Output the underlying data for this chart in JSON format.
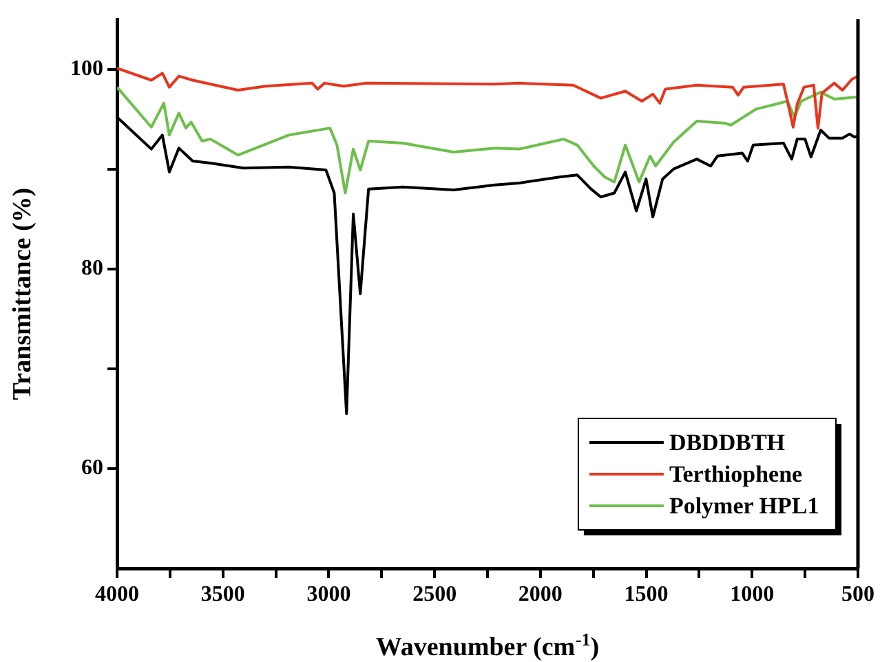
{
  "chart_data": {
    "type": "line",
    "xlabel": "Wavenumber (cm$^{-1}$)",
    "ylabel": "Transmittance (%)",
    "xlim": [
      4000,
      500
    ],
    "ylim": [
      50,
      105
    ],
    "xticks": [
      4000,
      {
        "value": 3750,
        "label": null
      },
      3500,
      {
        "value": 3250,
        "label": null
      },
      3000,
      {
        "value": 2750,
        "label": null
      },
      2500,
      {
        "value": 2250,
        "label": null
      },
      2000,
      {
        "value": 1750,
        "label": null
      },
      1500,
      {
        "value": 1250,
        "label": null
      },
      1000,
      {
        "value": 750,
        "label": null
      },
      500
    ],
    "yticks": [
      60,
      {
        "value": 70,
        "label": null
      },
      80,
      {
        "value": 90,
        "label": null
      },
      100
    ],
    "grid": false,
    "legend": "bottom right",
    "marker": "none",
    "line_style": "solid",
    "series": [
      {
        "name": "DBDDBTH",
        "color": "#000000",
        "x": [
          4000,
          3838,
          3786,
          3753,
          3708,
          3643,
          3559,
          3403,
          3189,
          3013,
          2974,
          2916,
          2884,
          2851,
          2812,
          2650,
          2410,
          2215,
          2100,
          1910,
          1826,
          1761,
          1715,
          1651,
          1599,
          1547,
          1501,
          1469,
          1423,
          1371,
          1261,
          1196,
          1164,
          1047,
          1021,
          995,
          852,
          813,
          787,
          750,
          722,
          676,
          637,
          573,
          541,
          515,
          500
        ],
        "values": [
          95.2,
          92.0,
          93.4,
          89.7,
          92.1,
          90.8,
          90.6,
          90.1,
          90.2,
          89.9,
          87.6,
          65.5,
          85.5,
          77.5,
          88.0,
          88.2,
          87.9,
          88.4,
          88.6,
          89.2,
          89.4,
          88.0,
          87.2,
          87.6,
          89.7,
          85.8,
          89.0,
          85.2,
          89.0,
          90.0,
          91.0,
          90.3,
          91.3,
          91.6,
          90.8,
          92.4,
          92.6,
          91.0,
          93.0,
          93.0,
          91.2,
          93.9,
          93.1,
          93.1,
          93.5,
          93.2,
          93.3
        ]
      },
      {
        "name": "Terthiophene",
        "color": "#e8351e",
        "x": [
          4000,
          3838,
          3786,
          3753,
          3708,
          3643,
          3429,
          3299,
          3078,
          3052,
          3020,
          2929,
          2819,
          2215,
          2100,
          1845,
          1715,
          1599,
          1521,
          1469,
          1436,
          1410,
          1261,
          1092,
          1066,
          1040,
          852,
          833,
          806,
          787,
          755,
          709,
          689,
          670,
          612,
          573,
          528,
          500
        ],
        "values": [
          100.1,
          98.9,
          99.6,
          98.2,
          99.3,
          98.9,
          97.9,
          98.3,
          98.6,
          98.0,
          98.6,
          98.3,
          98.6,
          98.5,
          98.6,
          98.4,
          97.1,
          97.8,
          96.8,
          97.5,
          96.6,
          98.0,
          98.4,
          98.2,
          97.4,
          98.2,
          98.5,
          96.8,
          94.2,
          96.5,
          98.2,
          98.4,
          94.1,
          97.6,
          98.6,
          97.9,
          99.0,
          99.3
        ]
      },
      {
        "name": "Polymer HPL1",
        "color": "#6cc04a",
        "x": [
          4000,
          3838,
          3779,
          3753,
          3708,
          3675,
          3650,
          3598,
          3559,
          3429,
          3189,
          2994,
          2961,
          2922,
          2884,
          2851,
          2812,
          2650,
          2410,
          2215,
          2100,
          1890,
          1826,
          1748,
          1696,
          1651,
          1599,
          1534,
          1482,
          1456,
          1371,
          1261,
          1131,
          1100,
          982,
          833,
          800,
          768,
          676,
          612,
          515,
          500
        ],
        "values": [
          98.2,
          94.2,
          96.6,
          93.4,
          95.6,
          94.1,
          94.7,
          92.8,
          93.0,
          91.4,
          93.4,
          94.1,
          92.4,
          87.6,
          92.0,
          89.9,
          92.8,
          92.6,
          91.7,
          92.1,
          92.0,
          93.0,
          92.4,
          90.3,
          89.2,
          88.7,
          92.4,
          88.7,
          91.3,
          90.3,
          92.7,
          94.8,
          94.6,
          94.4,
          96.0,
          96.8,
          95.2,
          96.8,
          97.7,
          97.0,
          97.2,
          97.2
        ]
      }
    ]
  }
}
